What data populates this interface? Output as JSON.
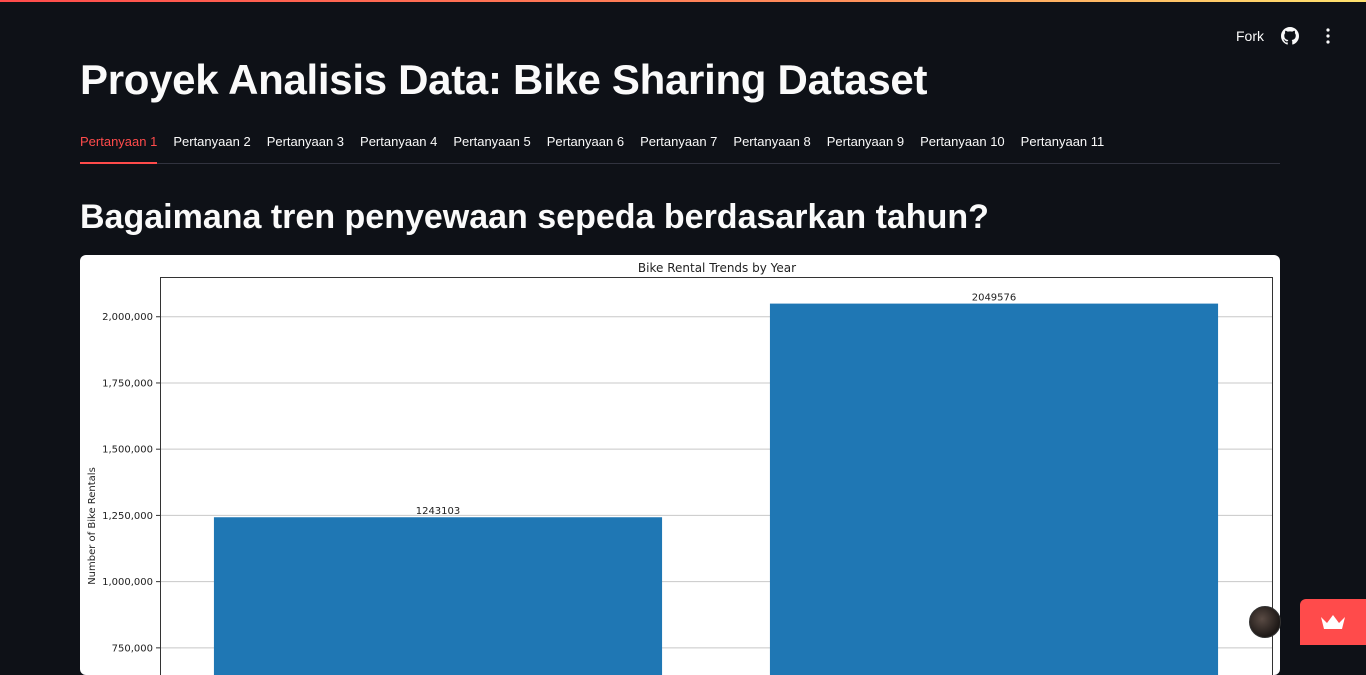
{
  "header": {
    "fork_label": "Fork",
    "github_icon": "github-icon",
    "menu_icon": "kebab-menu-icon"
  },
  "page": {
    "title": "Proyek Analisis Data: Bike Sharing Dataset",
    "section_heading": "Bagaimana tren penyewaan sepeda berdasarkan tahun?"
  },
  "tabs": [
    {
      "label": "Pertanyaan 1",
      "active": true
    },
    {
      "label": "Pertanyaan 2",
      "active": false
    },
    {
      "label": "Pertanyaan 3",
      "active": false
    },
    {
      "label": "Pertanyaan 4",
      "active": false
    },
    {
      "label": "Pertanyaan 5",
      "active": false
    },
    {
      "label": "Pertanyaan 6",
      "active": false
    },
    {
      "label": "Pertanyaan 7",
      "active": false
    },
    {
      "label": "Pertanyaan 8",
      "active": false
    },
    {
      "label": "Pertanyaan 9",
      "active": false
    },
    {
      "label": "Pertanyaan 10",
      "active": false
    },
    {
      "label": "Pertanyaan 11",
      "active": false
    }
  ],
  "colors": {
    "accent": "#ff4b4b",
    "bar": "#1f77b4",
    "background": "#0e1117"
  },
  "chart_data": {
    "type": "bar",
    "title": "Bike Rental Trends by Year",
    "xlabel": "",
    "ylabel": "Number of Bike Rentals",
    "categories": [
      "",
      ""
    ],
    "values": [
      1243103,
      2049576
    ],
    "data_labels": [
      "1243103",
      "2049576"
    ],
    "yticks": [
      750000,
      1000000,
      1250000,
      1500000,
      1750000,
      2000000
    ],
    "ytick_labels": [
      "750,000",
      "1,000,000",
      "1,250,000",
      "1,500,000",
      "1,750,000",
      "2,000,000"
    ],
    "ylim_visible": [
      640000,
      2150000
    ],
    "grid": true,
    "legend": "none"
  }
}
